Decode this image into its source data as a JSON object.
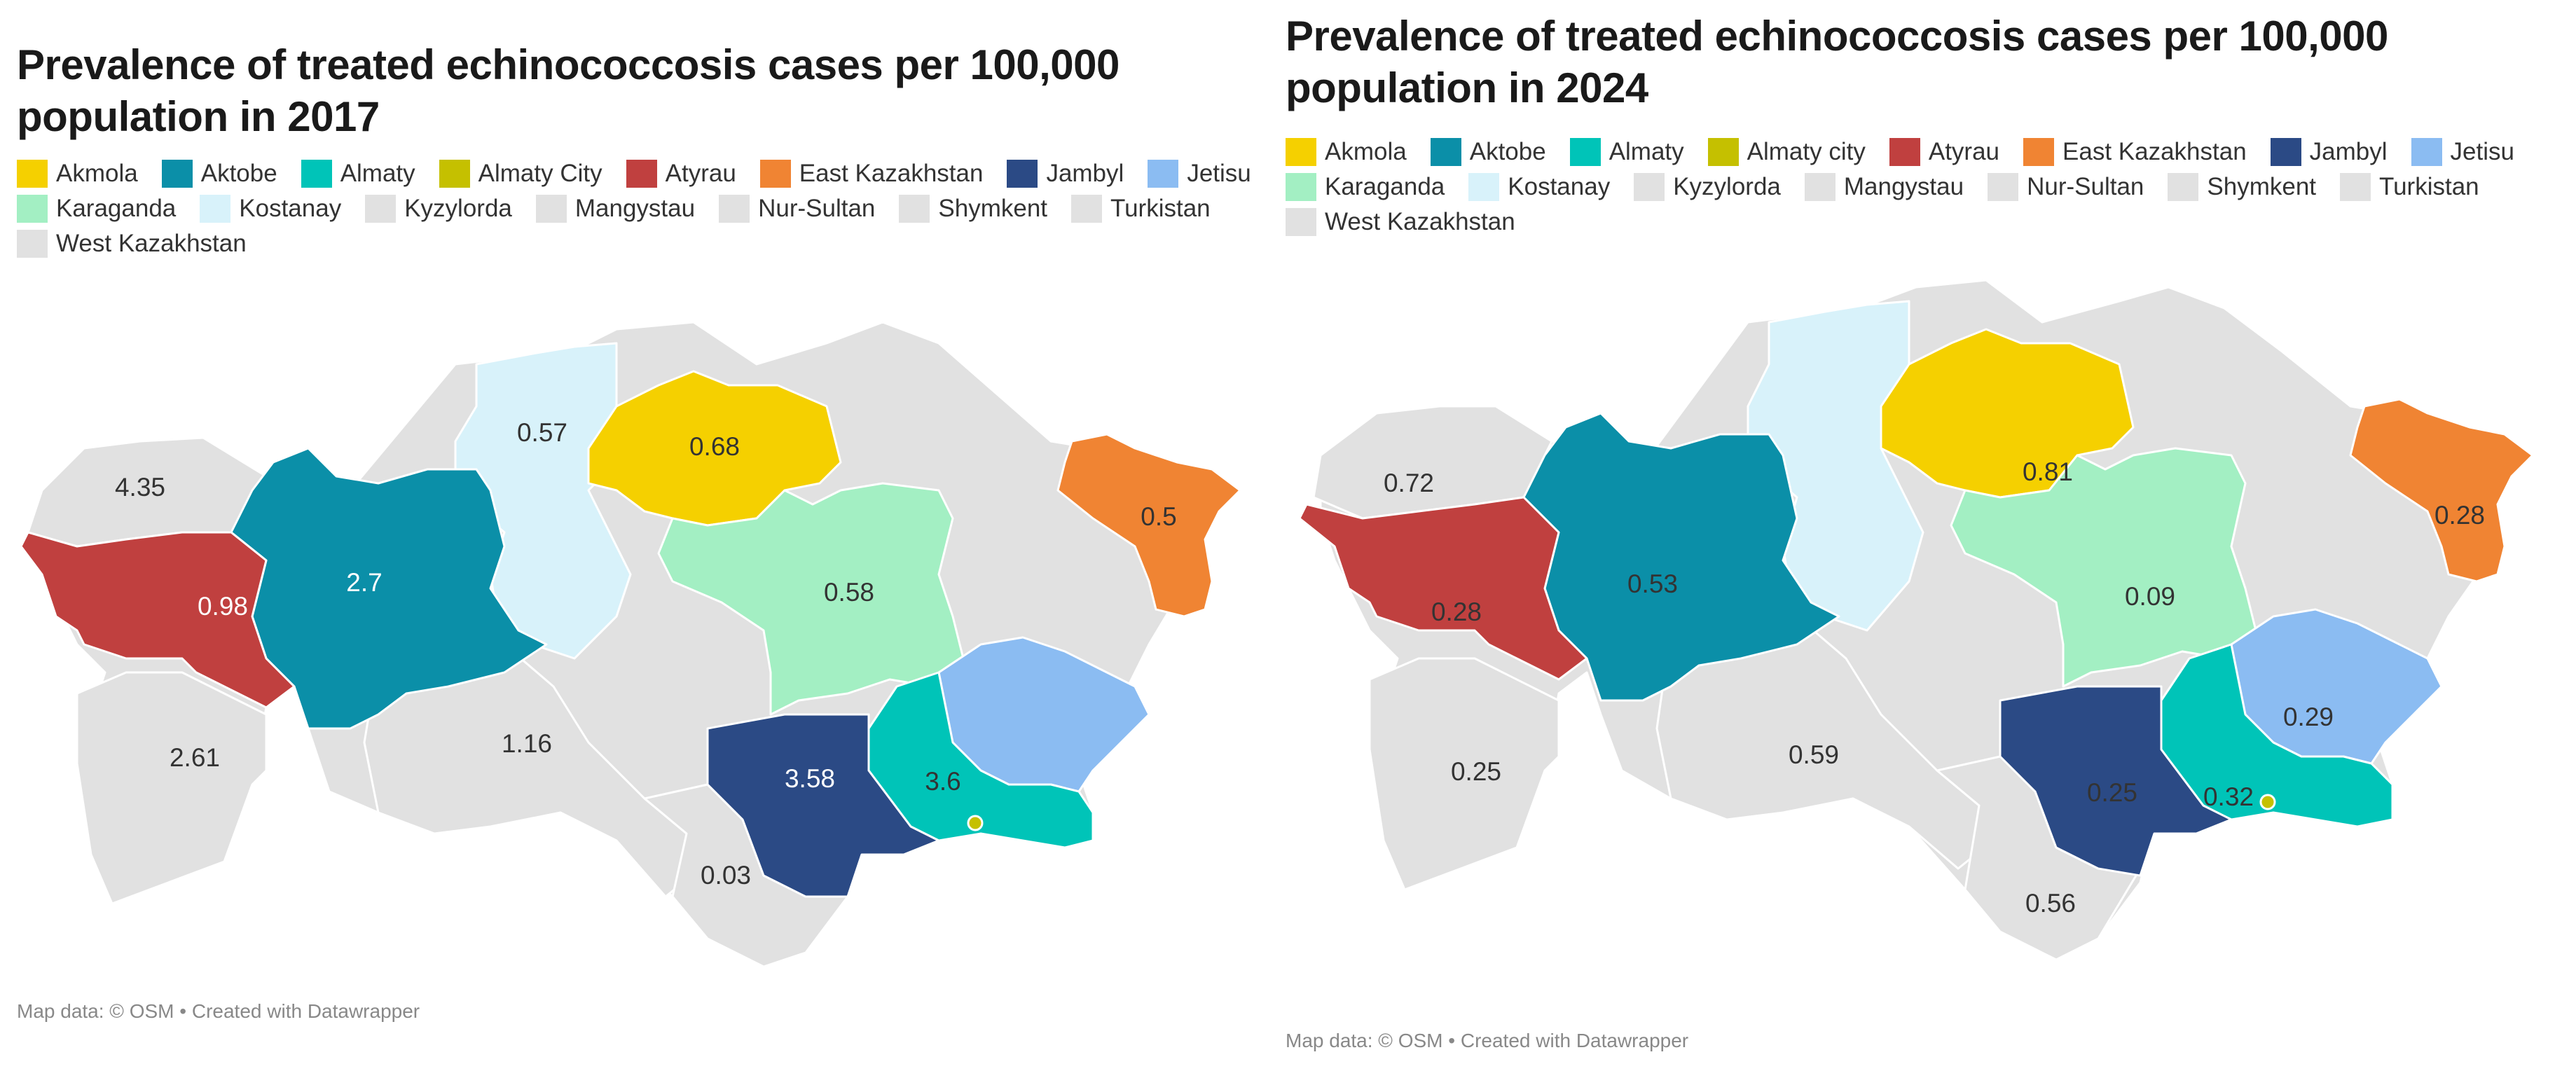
{
  "maps": [
    {
      "title_line1": "Prevalence of treated echinococcosis cases per 100,000",
      "title_line2": "population in 2017",
      "footer": "Map data: © OSM  • Created with Datawrapper",
      "legend": [
        {
          "label": "Akmola",
          "color": "#f5d000"
        },
        {
          "label": "Aktobe",
          "color": "#0b8fa8"
        },
        {
          "label": "Almaty",
          "color": "#00c4b8"
        },
        {
          "label": "Almaty City",
          "color": "#c5c000"
        },
        {
          "label": "Atyrau",
          "color": "#c0403f"
        },
        {
          "label": "East Kazakhstan",
          "color": "#f08433"
        },
        {
          "label": "Jambyl",
          "color": "#2b4a85"
        },
        {
          "label": "Jetisu",
          "color": "#8bbcf2"
        },
        {
          "label": "Karaganda",
          "color": "#a3efc3"
        },
        {
          "label": "Kostanay",
          "color": "#d8f2fa"
        },
        {
          "label": "Kyzylorda",
          "color": "#e1e1e1"
        },
        {
          "label": "Mangystau",
          "color": "#e1e1e1"
        },
        {
          "label": "Nur-Sultan",
          "color": "#e1e1e1"
        },
        {
          "label": "Shymkent",
          "color": "#e1e1e1"
        },
        {
          "label": "Turkistan",
          "color": "#e1e1e1"
        },
        {
          "label": "West Kazakhstan",
          "color": "#e1e1e1"
        }
      ],
      "values": {
        "west_kazakhstan": "4.35",
        "atyrau": "0.98",
        "aktobe": "2.7",
        "mangystau": "2.61",
        "kostanay": "0.57",
        "akmola": "0.68",
        "east_kazakhstan": "0.5",
        "karaganda": "0.58",
        "kyzylorda": "1.16",
        "jambyl": "3.58",
        "almaty": "3.6",
        "turkistan": "0.03"
      }
    },
    {
      "title_line1": "Prevalence of treated echinococcosis cases per 100,000",
      "title_line2": "population in 2024",
      "footer": "Map data: © OSM  • Created with Datawrapper",
      "legend": [
        {
          "label": "Akmola",
          "color": "#f5d000"
        },
        {
          "label": "Aktobe",
          "color": "#0b8fa8"
        },
        {
          "label": "Almaty",
          "color": "#00c4b8"
        },
        {
          "label": "Almaty city",
          "color": "#c5c000"
        },
        {
          "label": "Atyrau",
          "color": "#c0403f"
        },
        {
          "label": "East Kazakhstan",
          "color": "#f08433"
        },
        {
          "label": "Jambyl",
          "color": "#2b4a85"
        },
        {
          "label": "Jetisu",
          "color": "#8bbcf2"
        },
        {
          "label": "Karaganda",
          "color": "#a3efc3"
        },
        {
          "label": "Kostanay",
          "color": "#d8f2fa"
        },
        {
          "label": "Kyzylorda",
          "color": "#e1e1e1"
        },
        {
          "label": "Mangystau",
          "color": "#e1e1e1"
        },
        {
          "label": "Nur-Sultan",
          "color": "#e1e1e1"
        },
        {
          "label": "Shymkent",
          "color": "#e1e1e1"
        },
        {
          "label": "Turkistan",
          "color": "#e1e1e1"
        },
        {
          "label": "West Kazakhstan",
          "color": "#e1e1e1"
        }
      ],
      "values": {
        "west_kazakhstan": "0.72",
        "atyrau": "0.28",
        "aktobe": "0.53",
        "mangystau": "0.25",
        "akmola": "0.81",
        "east_kazakhstan": "0.28",
        "karaganda": "0.09",
        "kyzylorda": "0.59",
        "jambyl": "0.25",
        "almaty": "0.32",
        "jetisu": "0.29",
        "turkistan": "0.56"
      }
    }
  ]
}
